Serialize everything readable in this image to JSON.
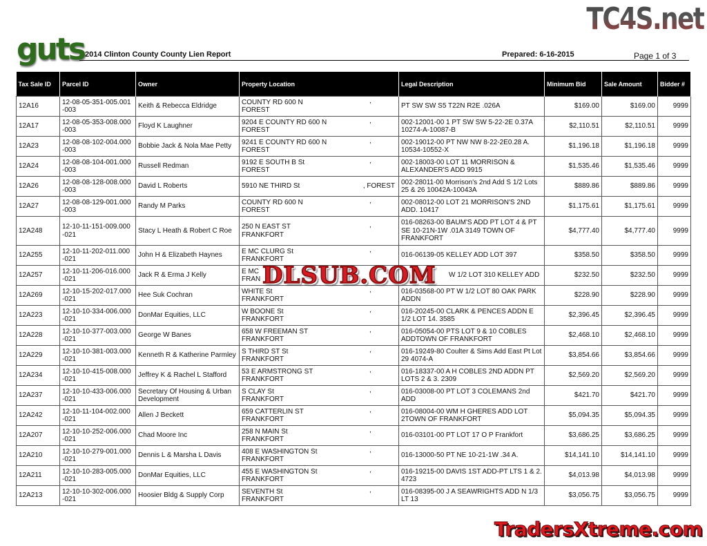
{
  "watermarks": {
    "top": "TC4S.net",
    "middle": "DLSUB.COM",
    "bottom": "TradersXtreme.com"
  },
  "logo": "guts",
  "header": {
    "title": "2014 Clinton County County Lien Report",
    "prepared": "Prepared: 6-16-2015",
    "page": "Page 1 of 3"
  },
  "columns": [
    "Tax Sale ID",
    "Parcel ID",
    "Owner",
    "Property Location",
    "Legal Description",
    "Minimum Bid",
    "Sale Amount",
    "Bidder #"
  ],
  "rows": [
    {
      "id": "12A16",
      "parcel": "12-08-05-351-005.001 -003",
      "owner": "Keith & Rebecca Eldridge",
      "street": "COUNTY RD 600 N",
      "city": "FOREST",
      "legal": "PT SW SW S5 T22N R2E  .026A",
      "min": "$169.00",
      "sale": "$169.00",
      "bidder": "9999"
    },
    {
      "id": "12A17",
      "parcel": "12-08-05-353-008.000 -003",
      "owner": "Floyd K Laughner",
      "street": "9204 E COUNTY RD 600 N",
      "city": "FOREST",
      "legal": "002-12001-00 1 PT SW SW 5-22-2E  0.37A 10274-A-10087-B",
      "min": "$2,110.51",
      "sale": "$2,110.51",
      "bidder": "9999"
    },
    {
      "id": "12A23",
      "parcel": "12-08-08-102-004.000 -003",
      "owner": "Bobbie Jack & Nola Mae Petty",
      "street": "9241 E COUNTY RD 600 N",
      "city": "FOREST",
      "legal": "002-19012-00 PT NW NW 8-22-2E0.28 A. 10534-10552-X",
      "min": "$1,196.18",
      "sale": "$1,196.18",
      "bidder": "9999"
    },
    {
      "id": "12A24",
      "parcel": "12-08-08-104-001.000 -003",
      "owner": "Russell Redman",
      "street": "9192 E SOUTH B St",
      "city": "FOREST",
      "legal": "002-18003-00 LOT 11  MORRISON & ALEXANDER'S ADD 9915",
      "min": "$1,535.46",
      "sale": "$1,535.46",
      "bidder": "9999"
    },
    {
      "id": "12A26",
      "parcel": "12-08-08-128-008.000 -003",
      "owner": "David L Roberts",
      "street": "5910 NE THIRD St",
      "city": ", FOREST",
      "inline": true,
      "legal": "002-28011-00 Morrison's 2nd Add   S 1/2 Lots 25 & 26 10042A-10043A",
      "min": "$889.86",
      "sale": "$889.86",
      "bidder": "9999"
    },
    {
      "id": "12A27",
      "parcel": "12-08-08-129-001.000 -003",
      "owner": "Randy M Parks",
      "street": "COUNTY RD 600 N",
      "city": "FOREST",
      "legal": "002-08012-00 LOT 21  MORRISON'S 2ND ADD. 10417",
      "min": "$1,175.61",
      "sale": "$1,175.61",
      "bidder": "9999"
    },
    {
      "id": "12A248",
      "parcel": "12-10-11-151-009.000 -021",
      "owner": "Stacy L Heath & Robert C Roe",
      "street": "250 N EAST ST",
      "city": "FRANKFORT",
      "legal": "016-08263-00  BAUM'S ADD PT LOT 4 & PT SE 10-21N-1W .01A  3149 TOWN OF FRANKFORT",
      "min": "$4,777.40",
      "sale": "$4,777.40",
      "bidder": "9999",
      "tall": true
    },
    {
      "id": "12A255",
      "parcel": "12-10-11-202-011.000 -021",
      "owner": "John H & Elizabeth Haynes",
      "street": "E MC CLURG St",
      "city": "FRANKFORT",
      "legal": "016-06139-05  KELLEY ADD LOT 397",
      "min": "$358.50",
      "sale": "$358.50",
      "bidder": "9999"
    },
    {
      "id": "12A257",
      "parcel": "12-10-11-206-016.000 -021",
      "owner": "Jack R & Erma J Kelly",
      "street": "E MC",
      "city": "FRAN",
      "legal": "W 1/2 LOT 310  KELLEY ADD",
      "min": "$232.50",
      "sale": "$232.50",
      "bidder": "9999"
    },
    {
      "id": "12A269",
      "parcel": "12-10-15-202-017.000 -021",
      "owner": "Hee Suk Cochran",
      "street": "WHITE St",
      "city": "FRANKFORT",
      "legal": "016-03568-00 PT W 1/2 LOT 80 OAK PARK ADDN",
      "min": "$228.90",
      "sale": "$228.90",
      "bidder": "9999"
    },
    {
      "id": "12A223",
      "parcel": "12-10-10-334-006.000 -021",
      "owner": "DonMar Equities, LLC",
      "street": "W BOONE St",
      "city": "FRANKFORT",
      "legal": "016-20245-00 CLARK & PENCES ADDN E 1/2 LOT 14.  3585",
      "min": "$2,396.45",
      "sale": "$2,396.45",
      "bidder": "9999"
    },
    {
      "id": "12A228",
      "parcel": "12-10-10-377-003.000 -021",
      "owner": "George W Banes",
      "street": "658 W FREEMAN ST",
      "city": "FRANKFORT",
      "legal": "016-05054-00   PTS LOT 9 & 10 COBLES ADDTOWN OF FRANKFORT",
      "min": "$2,468.10",
      "sale": "$2,468.10",
      "bidder": "9999"
    },
    {
      "id": "12A229",
      "parcel": "12-10-10-381-003.000 -021",
      "owner": "Kenneth R & Katherine Parmley",
      "street": "S THIRD ST St",
      "city": "FRANKFORT",
      "legal": "016-19249-80 Coulter & Sims Add East Pt Lot 29 4074-A",
      "min": "$3,854.66",
      "sale": "$3,854.66",
      "bidder": "9999"
    },
    {
      "id": "12A234",
      "parcel": "12-10-10-415-008.000 -021",
      "owner": "Jeffrey K & Rachel L Stafford",
      "street": "53 E ARMSTRONG ST",
      "city": "FRANKFORT",
      "legal": "016-18337-00 A H COBLES 2ND ADDN PT LOTS 2 & 3.  2309",
      "min": "$2,569.20",
      "sale": "$2,569.20",
      "bidder": "9999"
    },
    {
      "id": "12A237",
      "parcel": "12-10-10-433-006.000 -021",
      "owner": "Secretary Of Housing & Urban Development",
      "street": "S CLAY St",
      "city": "FRANKFORT",
      "legal": "016-03008-00 PT LOT 3 COLEMANS 2nd ADD",
      "min": "$421.70",
      "sale": "$421.70",
      "bidder": "9999"
    },
    {
      "id": "12A242",
      "parcel": "12-10-11-104-002.000 -021",
      "owner": "Allen J Beckett",
      "street": "659  CATTERLIN ST",
      "city": "FRANKFORT",
      "legal": "016-08004-00   WM H GHERES ADD LOT 2TOWN OF FRANKFORT",
      "min": "$5,094.35",
      "sale": "$5,094.35",
      "bidder": "9999"
    },
    {
      "id": "12A207",
      "parcel": "12-10-10-252-006.000 -021",
      "owner": "Chad Moore Inc",
      "street": "258 N MAIN St",
      "city": "FRANKFORT",
      "legal": "016-03101-00 PT LOT 17  O P Frankfort",
      "min": "$3,686.25",
      "sale": "$3,686.25",
      "bidder": "9999"
    },
    {
      "id": "12A210",
      "parcel": "12-10-10-279-001.000 -021",
      "owner": "Dennis L & Marsha L Davis",
      "street": "408 E WASHINGTON St",
      "city": "FRANKFORT",
      "legal": "016-13000-50 PT NE 10-21-1W  .34 A.",
      "min": "$14,141.10",
      "sale": "$14,141.10",
      "bidder": "9999"
    },
    {
      "id": "12A211",
      "parcel": "12-10-10-283-005.000 -021",
      "owner": "DonMar Equities, LLC",
      "street": "455 E WASHINGTON St",
      "city": "FRANKFORT",
      "legal": "016-19215-00 DAVIS 1ST ADD-PT LTS 1 & 2. 4723",
      "min": "$4,013.98",
      "sale": "$4,013.98",
      "bidder": "9999"
    },
    {
      "id": "12A213",
      "parcel": "12-10-10-302-006.000 -021",
      "owner": "Hoosier Bldg & Supply Corp",
      "street": "SEVENTH St",
      "city": "FRANKFORT",
      "legal": "016-08395-00  J A SEAWRIGHTS ADD N 1/3 LT 13",
      "min": "$3,056.75",
      "sale": "$3,056.75",
      "bidder": "9999"
    }
  ]
}
